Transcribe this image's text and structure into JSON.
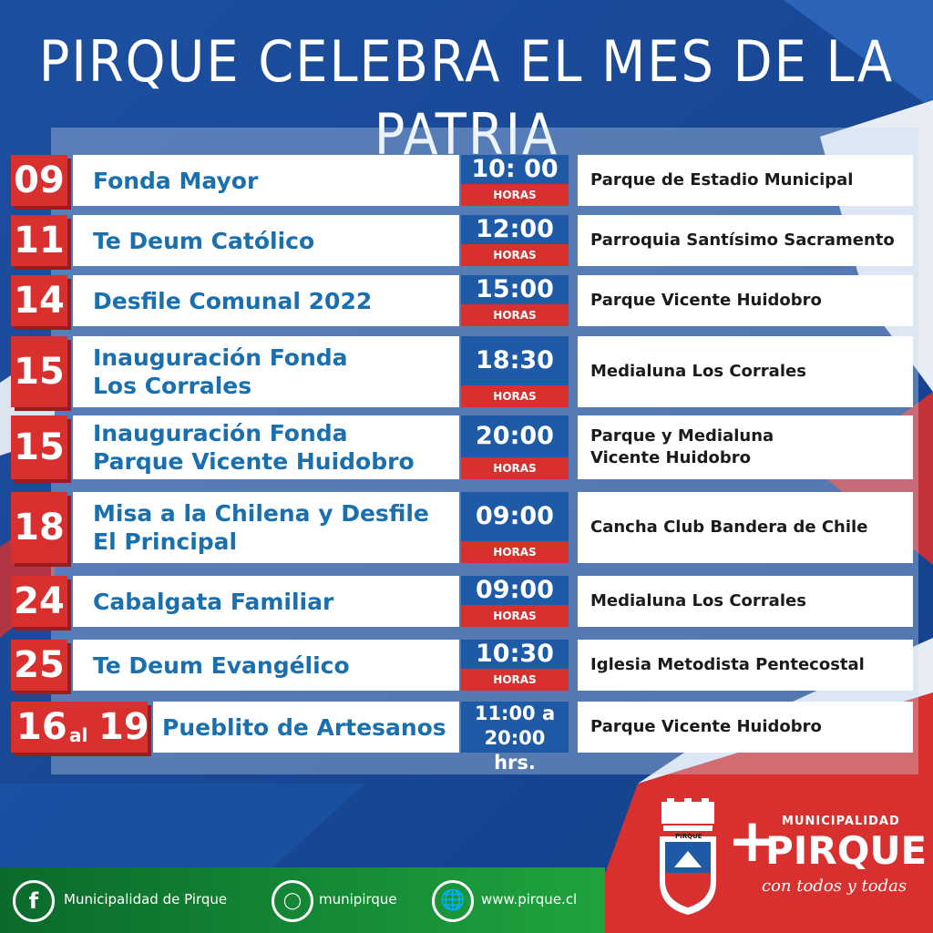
{
  "title": "PIRQUE CELEBRA EL MES DE LA PATRIA",
  "colors": {
    "blue": "#1f5aa6",
    "red": "#d8302f",
    "green": "#1fa43e"
  },
  "events": [
    {
      "day": "09",
      "name": [
        "Fonda Mayor"
      ],
      "time": "10: 00",
      "unit": "HORAS",
      "place": [
        "Parque de Estadio Municipal"
      ]
    },
    {
      "day": "11",
      "name": [
        "Te Deum Católico"
      ],
      "time": "12:00",
      "unit": "HORAS",
      "place": [
        "Parroquia Santísimo Sacramento"
      ]
    },
    {
      "day": "14",
      "name": [
        "Desfile Comunal 2022"
      ],
      "time": "15:00",
      "unit": "HORAS",
      "place": [
        "Parque Vicente Huidobro"
      ]
    },
    {
      "day": "15",
      "name": [
        "Inauguración Fonda",
        "Los Corrales"
      ],
      "time": "18:30",
      "unit": "HORAS",
      "place": [
        "Medialuna Los Corrales"
      ]
    },
    {
      "day": "15",
      "name": [
        "Inauguración Fonda",
        "Parque Vicente Huidobro"
      ],
      "time": "20:00",
      "unit": "HORAS",
      "place": [
        "Parque y Medialuna",
        "Vicente Huidobro"
      ]
    },
    {
      "day": "18",
      "name": [
        "Misa a la Chilena y Desfile",
        "El Principal"
      ],
      "time": "09:00",
      "unit": "HORAS",
      "place": [
        "Cancha Club Bandera de Chile"
      ]
    },
    {
      "day": "24",
      "name": [
        "Cabalgata Familiar"
      ],
      "time": "09:00",
      "unit": "HORAS",
      "place": [
        "Medialuna Los Corrales"
      ]
    },
    {
      "day": "25",
      "name": [
        "Te Deum Evangélico"
      ],
      "time": "10:30",
      "unit": "HORAS",
      "place": [
        "Iglesia Metodista Pentecostal"
      ]
    }
  ],
  "special": {
    "day_from": "16",
    "connector": "al",
    "day_to": "19",
    "name": "Pueblito de Artesanos",
    "time_line1": "11:00 a",
    "time_line2": "20:00 hrs.",
    "place": "Parque Vicente Huidobro"
  },
  "footer": {
    "facebook_icon": "facebook-icon",
    "facebook": "Municipalidad de Pirque",
    "instagram_icon": "instagram-icon",
    "instagram": "munipirque",
    "web_icon": "globe-icon",
    "web": "www.pirque.cl"
  },
  "logo": {
    "municipalidad": "MUNICIPALIDAD",
    "name": "PIRQUE",
    "slogan": "con todos y todas",
    "crest_label": "PIRQUE"
  }
}
